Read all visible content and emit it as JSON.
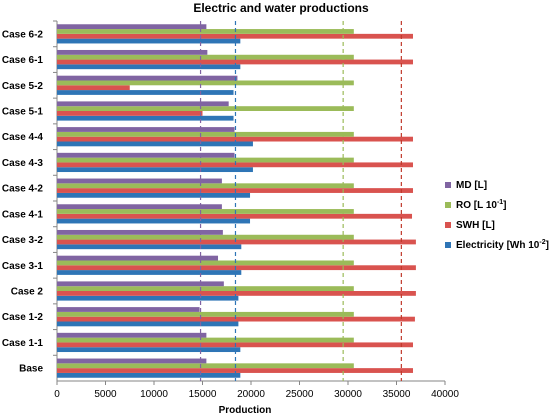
{
  "chart_data": {
    "type": "bar",
    "orientation": "horizontal",
    "title": "Electric and water productions",
    "xlabel": "Production",
    "ylabel": "",
    "xlim": [
      0,
      40000
    ],
    "x_ticks": [
      "0",
      "5000",
      "10000",
      "15000",
      "20000",
      "25000",
      "30000",
      "35000",
      "40000"
    ],
    "grid": false,
    "legend_position": "right",
    "categories": [
      "Base",
      "Case 1-1",
      "Case 1-2",
      "Case 2",
      "Case 3-1",
      "Case 3-2",
      "Case 4-1",
      "Case 4-2",
      "Case 4-3",
      "Case 4-4",
      "Case 5-1",
      "Case 5-2",
      "Case 6-1",
      "Case 6-2"
    ],
    "series": [
      {
        "name": "MD [L]",
        "legend_label": "MD [L]",
        "legend_sup": "",
        "legend_suffix": "",
        "color": "#8064a2",
        "values": [
          15400,
          15400,
          14700,
          17200,
          16600,
          17100,
          17000,
          17000,
          18300,
          18300,
          17700,
          18600,
          15500,
          15400
        ]
      },
      {
        "name": "RO [L 10^-1]",
        "legend_label": "RO [L 10",
        "legend_sup": "-1",
        "legend_suffix": "]",
        "color": "#9bbb59",
        "values": [
          30600,
          30600,
          30600,
          30600,
          30600,
          30600,
          30600,
          30600,
          30600,
          30600,
          30600,
          30600,
          30600,
          30600
        ]
      },
      {
        "name": "SWH [L]",
        "legend_label": "SWH [L]",
        "legend_sup": "",
        "legend_suffix": "",
        "color": "#d9534f",
        "values": [
          36700,
          36700,
          36900,
          37000,
          37000,
          37000,
          36600,
          36700,
          36700,
          36700,
          15000,
          7500,
          36700,
          36700
        ]
      },
      {
        "name": "Electricity [Wh 10^-2]",
        "legend_label": "Electricity [Wh 10",
        "legend_sup": "-2",
        "legend_suffix": "]",
        "color": "#2e75b6",
        "values": [
          18900,
          18900,
          18700,
          18700,
          19000,
          19000,
          19900,
          19900,
          20200,
          20200,
          18200,
          18200,
          18900,
          18900
        ]
      }
    ],
    "reference_lines": [
      {
        "value": 14800,
        "color": "#8064a2"
      },
      {
        "value": 18400,
        "color": "#2e75b6"
      },
      {
        "value": 29500,
        "color": "#9bbb59"
      },
      {
        "value": 35500,
        "color": "#c0392b"
      }
    ]
  }
}
